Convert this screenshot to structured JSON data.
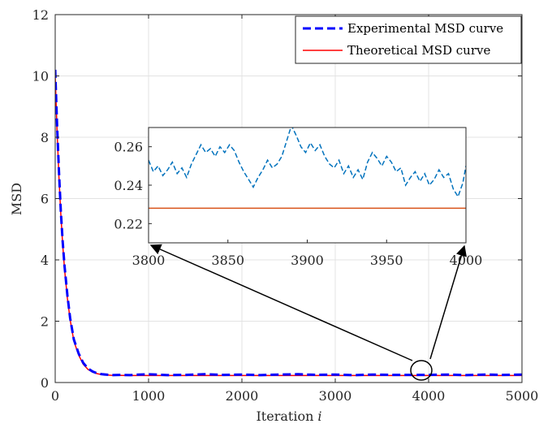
{
  "chart_data": [
    {
      "type": "line",
      "title": "",
      "xlabel": "Iteration",
      "xlabel_var": "i",
      "ylabel": "MSD",
      "xlim": [
        0,
        5000
      ],
      "ylim": [
        0,
        12
      ],
      "xticks": [
        0,
        1000,
        2000,
        3000,
        4000,
        5000
      ],
      "yticks": [
        0,
        2,
        4,
        6,
        8,
        10,
        12
      ],
      "xtick_labels": [
        "0",
        "1000",
        "2000",
        "3000",
        "4000",
        "5000"
      ],
      "ytick_labels": [
        "0",
        "2",
        "4",
        "6",
        "8",
        "10",
        "12"
      ],
      "grid": true,
      "legend_placement": "top-right",
      "series": [
        {
          "name": "Experimental MSD curve",
          "color": "#0000ff",
          "style": "dashed",
          "x": [
            0,
            20,
            40,
            60,
            80,
            100,
            130,
            160,
            200,
            250,
            300,
            350,
            400,
            450,
            500,
            600,
            700,
            800,
            900,
            1000,
            1200,
            1400,
            1600,
            1800,
            2000,
            2200,
            2400,
            2600,
            2800,
            3000,
            3200,
            3400,
            3600,
            3800,
            4000,
            4200,
            4400,
            4600,
            4800,
            5000
          ],
          "y": [
            10.2,
            8.4,
            6.9,
            5.6,
            4.6,
            3.8,
            2.85,
            2.1,
            1.4,
            0.95,
            0.64,
            0.46,
            0.36,
            0.3,
            0.27,
            0.24,
            0.25,
            0.24,
            0.26,
            0.27,
            0.24,
            0.25,
            0.27,
            0.25,
            0.26,
            0.24,
            0.26,
            0.27,
            0.25,
            0.26,
            0.24,
            0.26,
            0.25,
            0.25,
            0.25,
            0.26,
            0.24,
            0.26,
            0.25,
            0.26
          ]
        },
        {
          "name": "Theoretical MSD curve",
          "color": "#ff0000",
          "style": "solid",
          "x": [
            0,
            20,
            40,
            60,
            80,
            100,
            130,
            160,
            200,
            250,
            300,
            350,
            400,
            450,
            500,
            600,
            700,
            800,
            1000,
            2000,
            3000,
            4000,
            5000
          ],
          "y": [
            10.0,
            8.2,
            6.7,
            5.5,
            4.5,
            3.7,
            2.75,
            2.05,
            1.35,
            0.9,
            0.6,
            0.43,
            0.34,
            0.29,
            0.26,
            0.235,
            0.23,
            0.228,
            0.228,
            0.228,
            0.228,
            0.228,
            0.228
          ]
        }
      ]
    },
    {
      "type": "line",
      "title": "",
      "xlabel": "",
      "ylabel": "",
      "xlim": [
        3800,
        4000
      ],
      "ylim": [
        0.21,
        0.27
      ],
      "xticks": [
        3800,
        3850,
        3900,
        3950,
        4000
      ],
      "yticks": [
        0.22,
        0.24,
        0.26
      ],
      "xtick_labels": [
        "3800",
        "3850",
        "3900",
        "3950",
        "4000"
      ],
      "ytick_labels": [
        "0.22",
        "0.24",
        "0.26"
      ],
      "grid": false,
      "series": [
        {
          "color": "#0072bd",
          "style": "dashed",
          "x": [
            3800,
            3803,
            3806,
            3809,
            3812,
            3815,
            3818,
            3821,
            3824,
            3827,
            3830,
            3833,
            3836,
            3839,
            3842,
            3845,
            3848,
            3851,
            3854,
            3857,
            3860,
            3863,
            3866,
            3869,
            3872,
            3875,
            3878,
            3881,
            3884,
            3887,
            3890,
            3893,
            3896,
            3899,
            3902,
            3905,
            3908,
            3911,
            3914,
            3917,
            3920,
            3923,
            3926,
            3929,
            3932,
            3935,
            3938,
            3941,
            3944,
            3947,
            3950,
            3953,
            3956,
            3959,
            3962,
            3965,
            3968,
            3971,
            3974,
            3977,
            3980,
            3983,
            3986,
            3989,
            3992,
            3995,
            3998,
            4000
          ],
          "y": [
            0.253,
            0.247,
            0.25,
            0.245,
            0.248,
            0.252,
            0.246,
            0.249,
            0.244,
            0.251,
            0.256,
            0.261,
            0.257,
            0.259,
            0.255,
            0.26,
            0.257,
            0.261,
            0.258,
            0.252,
            0.247,
            0.243,
            0.239,
            0.244,
            0.248,
            0.253,
            0.249,
            0.251,
            0.255,
            0.263,
            0.271,
            0.266,
            0.26,
            0.257,
            0.262,
            0.258,
            0.261,
            0.255,
            0.251,
            0.249,
            0.253,
            0.246,
            0.25,
            0.244,
            0.248,
            0.243,
            0.252,
            0.257,
            0.254,
            0.25,
            0.255,
            0.252,
            0.247,
            0.249,
            0.24,
            0.244,
            0.247,
            0.242,
            0.246,
            0.24,
            0.243,
            0.248,
            0.244,
            0.246,
            0.238,
            0.234,
            0.241,
            0.25
          ]
        },
        {
          "color": "#d95319",
          "style": "solid",
          "x": [
            3800,
            4000
          ],
          "y": [
            0.228,
            0.228
          ]
        }
      ]
    }
  ]
}
